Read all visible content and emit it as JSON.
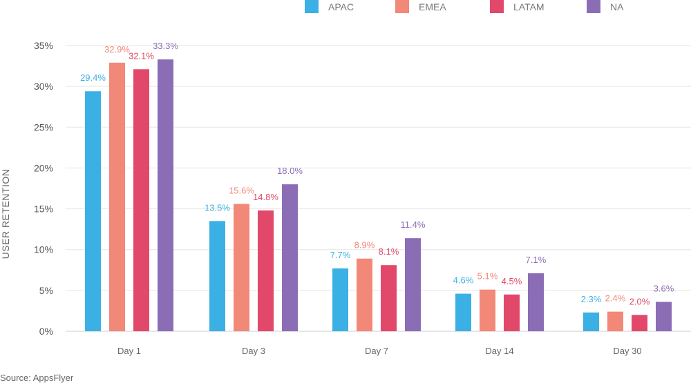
{
  "chart_data": {
    "type": "bar",
    "categories": [
      "Day 1",
      "Day 3",
      "Day 7",
      "Day 14",
      "Day 30"
    ],
    "series": [
      {
        "name": "APAC",
        "color": "#3BB0E4",
        "values": [
          29.4,
          13.5,
          7.7,
          4.6,
          2.3
        ],
        "labels": [
          "29.4%",
          "13.5%",
          "7.7%",
          "4.6%",
          "2.3%"
        ]
      },
      {
        "name": "EMEA",
        "color": "#F28877",
        "values": [
          32.9,
          15.6,
          8.9,
          5.1,
          2.4
        ],
        "labels": [
          "32.9%",
          "15.6%",
          "8.9%",
          "5.1%",
          "2.4%"
        ]
      },
      {
        "name": "LATAM",
        "color": "#E2486A",
        "values": [
          32.1,
          14.8,
          8.1,
          4.5,
          2.0
        ],
        "labels": [
          "32.1%",
          "14.8%",
          "8.1%",
          "4.5%",
          "2.0%"
        ]
      },
      {
        "name": "NA",
        "color": "#8B6DB6",
        "values": [
          33.3,
          18.0,
          11.4,
          7.1,
          3.6
        ],
        "labels": [
          "33.3%",
          "18.0%",
          "11.4%",
          "7.1%",
          "3.6%"
        ]
      }
    ],
    "ylabel": "USER RETENTION",
    "xlabel": "",
    "ylim": [
      0,
      35
    ],
    "yticks": [
      "0%",
      "5%",
      "10%",
      "15%",
      "20%",
      "25%",
      "30%",
      "35%"
    ],
    "grid": true,
    "legend": "top-right"
  },
  "source": "Source: AppsFlyer"
}
